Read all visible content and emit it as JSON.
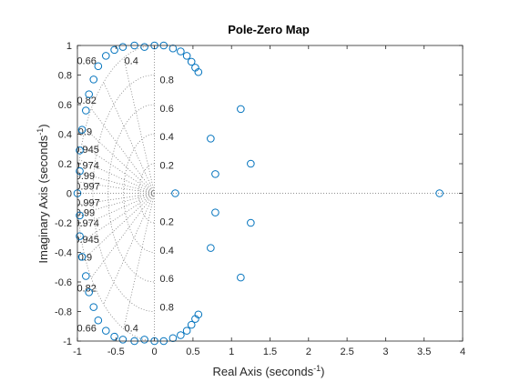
{
  "chart_data": {
    "type": "scatter",
    "title": "Pole-Zero Map",
    "xlabel": "Real Axis (seconds",
    "ylabel": "Imaginary Axis (seconds",
    "unit_superscript": "-1",
    "xlim": [
      -1,
      4
    ],
    "ylim": [
      -1,
      1
    ],
    "xticks": [
      -1,
      -0.5,
      0,
      0.5,
      1,
      1.5,
      2,
      2.5,
      3,
      3.5,
      4
    ],
    "xtick_labels": [
      "-1",
      "-0.5",
      "0",
      "0.5",
      "1",
      "1.5",
      "2",
      "2.5",
      "3",
      "3.5",
      "4"
    ],
    "yticks": [
      -1,
      -0.8,
      -0.6,
      -0.4,
      -0.2,
      0,
      0.2,
      0.4,
      0.6,
      0.8,
      1
    ],
    "ytick_labels": [
      "-1",
      "-0.8",
      "-0.6",
      "-0.4",
      "-0.2",
      "0",
      "0.2",
      "0.4",
      "0.6",
      "0.8",
      "1"
    ],
    "grid": "damping ratio and natural frequency (dotted)",
    "marker_color": "#0072BD",
    "marker": "o",
    "zeros": {
      "x": [
        -1,
        -0.97,
        -0.97,
        -0.94,
        -0.89,
        -0.85,
        -0.79,
        -0.73,
        -0.63,
        -0.52,
        -0.41,
        -0.26,
        -0.13,
        0.0,
        0.12,
        0.24,
        0.34,
        0.42,
        0.48,
        0.53,
        0.57,
        -0.97,
        -0.97,
        -0.94,
        -0.89,
        -0.85,
        -0.79,
        -0.73,
        -0.63,
        -0.52,
        -0.41,
        -0.26,
        -0.13,
        0.0,
        0.12,
        0.24,
        0.34,
        0.42,
        0.48,
        0.53,
        0.57,
        0.27,
        0.73,
        0.79,
        1.25,
        1.12,
        3.7,
        0.73,
        0.79,
        1.25,
        1.12
      ],
      "y": [
        0,
        0.15,
        0.29,
        0.43,
        0.56,
        0.67,
        0.77,
        0.86,
        0.93,
        0.97,
        0.99,
        1.0,
        0.99,
        1.0,
        1.0,
        0.98,
        0.96,
        0.93,
        0.89,
        0.85,
        0.82,
        -0.15,
        -0.29,
        -0.43,
        -0.56,
        -0.67,
        -0.77,
        -0.86,
        -0.93,
        -0.97,
        -0.99,
        -1.0,
        -0.99,
        -1.0,
        -1.0,
        -0.98,
        -0.96,
        -0.93,
        -0.89,
        -0.85,
        -0.82,
        0,
        0.37,
        0.13,
        0.2,
        0.57,
        0,
        -0.37,
        -0.13,
        -0.2,
        -0.57
      ]
    },
    "damping_labels": [
      "0.66",
      "0.4",
      "0.82",
      "0.9",
      "0.945",
      "0.974",
      "0.99",
      "0.997"
    ],
    "damping_values": [
      0.66,
      0.4,
      0.82,
      0.9,
      0.945,
      0.974,
      0.99,
      0.997
    ],
    "frequency_labels": [
      "1",
      "0.8",
      "0.6",
      "0.4",
      "0.2"
    ],
    "frequency_values": [
      1,
      0.8,
      0.6,
      0.4,
      0.2
    ]
  }
}
